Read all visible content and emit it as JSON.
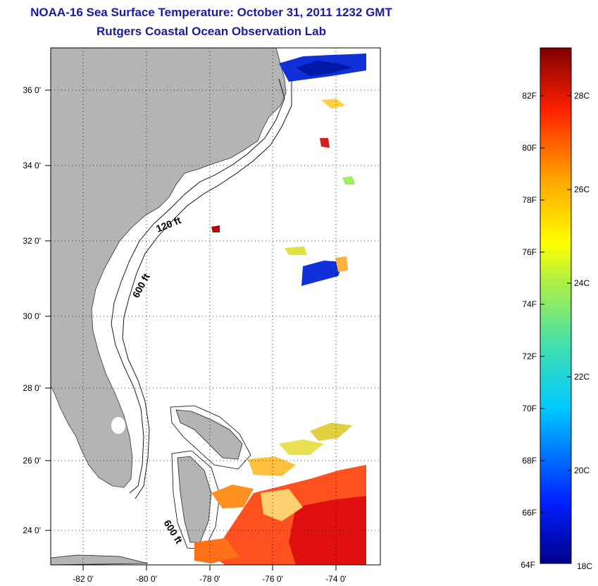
{
  "header": {
    "title": "NOAA-16 Sea Surface Temperature:  October 31, 2011 1232 GMT",
    "subtitle": "Rutgers Coastal Ocean Observation Lab"
  },
  "map": {
    "lat_range": [
      23,
      37
    ],
    "lon_range": [
      -83,
      -73
    ],
    "lat_ticks": [
      "36 0'",
      "34 0'",
      "32 0'",
      "30 0'",
      "28 0'",
      "26 0'",
      "24 0'"
    ],
    "lon_ticks": [
      "-82 0'",
      "-80 0'",
      "-78 0'",
      "-76 0'",
      "-74 0'"
    ],
    "contour_labels": {
      "c120": "120 ft",
      "c600a": "600 ft",
      "c600b": "600 ft"
    },
    "land_color": "#b4b4b4",
    "grid": "dotted"
  },
  "colorbar": {
    "fahrenheit": [
      "82F",
      "80F",
      "78F",
      "76F",
      "74F",
      "72F",
      "70F",
      "68F",
      "66F",
      "64F"
    ],
    "celsius": [
      "28C",
      "26C",
      "24C",
      "22C",
      "20C",
      "18C"
    ]
  }
}
